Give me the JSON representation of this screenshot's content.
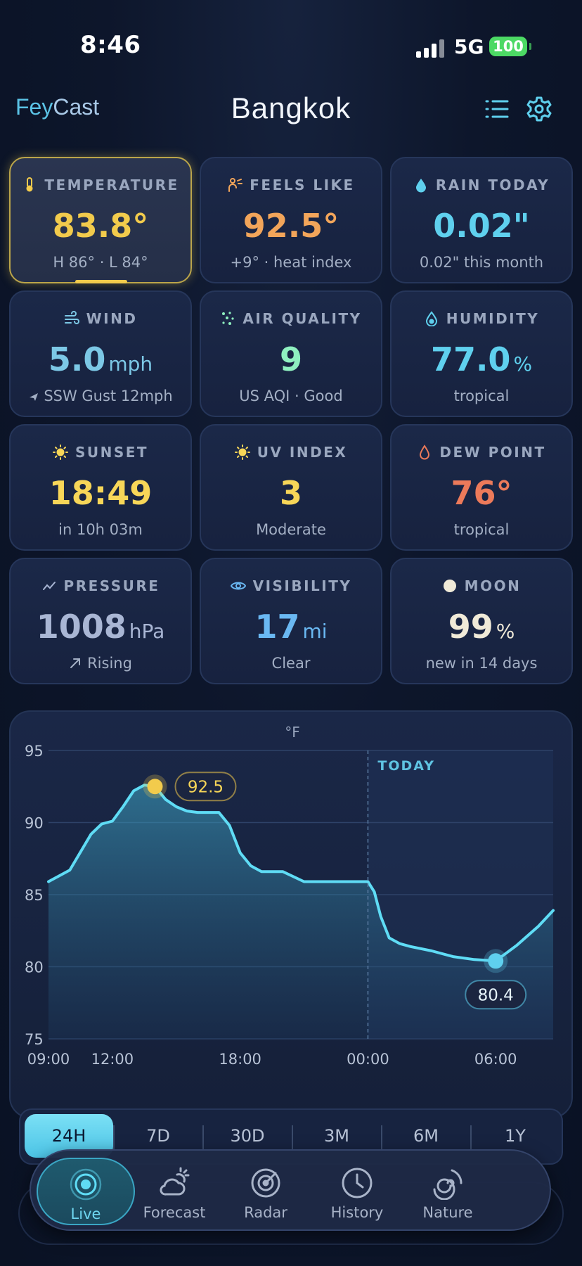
{
  "status_bar": {
    "time": "8:46",
    "network": "5G",
    "battery": "100"
  },
  "header": {
    "brand_part1": "Fey",
    "brand_part2": "Cast",
    "city": "Bangkok"
  },
  "tiles": [
    {
      "title": "TEMPERATURE",
      "value": "83.8°",
      "unit": "",
      "sub": "H 86° · L 84°",
      "icon": "thermometer-icon",
      "color": "#f2cb4c"
    },
    {
      "title": "FEELS LIKE",
      "value": "92.5°",
      "unit": "",
      "sub": "+9° · heat index",
      "icon": "person-icon",
      "color": "#f2a55a"
    },
    {
      "title": "RAIN TODAY",
      "value": "0.02\"",
      "unit": "",
      "sub": "0.02\" this month",
      "icon": "raindrop-icon",
      "color": "#5fd0ee"
    },
    {
      "title": "WIND",
      "value": "5.0",
      "unit": "mph",
      "sub": "SSW Gust 12mph",
      "icon": "wind-icon",
      "color": "#7cc8e6"
    },
    {
      "title": "AIR QUALITY",
      "value": "9",
      "unit": "",
      "sub": "US AQI · Good",
      "icon": "particles-icon",
      "color": "#8ff0c0"
    },
    {
      "title": "HUMIDITY",
      "value": "77.0",
      "unit": "%",
      "sub": "tropical",
      "icon": "humidity-drop-icon",
      "color": "#5fd0ee"
    },
    {
      "title": "SUNSET",
      "value": "18:49",
      "unit": "",
      "sub": "in 10h 03m",
      "icon": "sun-icon",
      "color": "#f7d658"
    },
    {
      "title": "UV INDEX",
      "value": "3",
      "unit": "",
      "sub": "Moderate",
      "icon": "sun-icon",
      "color": "#f7d658"
    },
    {
      "title": "DEW POINT",
      "value": "76°",
      "unit": "",
      "sub": "tropical",
      "icon": "drop-outline-icon",
      "color": "#ec7a5a"
    },
    {
      "title": "PRESSURE",
      "value": "1008",
      "unit": "hPa",
      "sub": "Rising",
      "icon": "gauge-icon",
      "color": "#a9b6d4"
    },
    {
      "title": "VISIBILITY",
      "value": "17",
      "unit": "mi",
      "sub": "Clear",
      "icon": "eye-icon",
      "color": "#6ab8f2"
    },
    {
      "title": "MOON",
      "value": "99",
      "unit": "%",
      "sub": "new in 14 days",
      "icon": "moon-icon",
      "color": "#f0ead8"
    }
  ],
  "chart_data": {
    "type": "area",
    "unit_label": "°F",
    "ylim": [
      75,
      95
    ],
    "y_ticks": [
      "95",
      "90",
      "85",
      "80",
      "75"
    ],
    "x_ticks": [
      "09:00",
      "12:00",
      "18:00",
      "00:00",
      "06:00"
    ],
    "x_tick_hours": [
      9,
      12,
      18,
      24,
      30
    ],
    "x_range_hours": [
      9,
      32.7
    ],
    "today_label": "TODAY",
    "today_hour": 24,
    "x": [
      9,
      10,
      11,
      11.5,
      12,
      12.5,
      13,
      13.5,
      14,
      14.5,
      15,
      15.5,
      16,
      17,
      17.5,
      18,
      18.5,
      19,
      19.5,
      20,
      21,
      21.5,
      22,
      23,
      24,
      24.3,
      24.6,
      25,
      25.5,
      26,
      27,
      28,
      29,
      30,
      31,
      32,
      32.7
    ],
    "y": [
      85.9,
      86.7,
      89.2,
      89.9,
      90.1,
      91.1,
      92.2,
      92.6,
      92.5,
      91.6,
      91.1,
      90.8,
      90.7,
      90.7,
      89.8,
      87.9,
      87.0,
      86.6,
      86.6,
      86.6,
      85.9,
      85.9,
      85.9,
      85.9,
      85.9,
      85.2,
      83.5,
      82.0,
      81.6,
      81.4,
      81.1,
      80.7,
      80.5,
      80.4,
      81.5,
      82.8,
      83.9
    ],
    "callouts": [
      {
        "label": "92.5",
        "x": 14,
        "y": 92.5,
        "color": "#f2cb4c"
      },
      {
        "label": "80.4",
        "x": 30,
        "y": 80.4,
        "color": "#5fd0ee"
      }
    ]
  },
  "range_options": [
    "24H",
    "7D",
    "30D",
    "3M",
    "6M",
    "1Y"
  ],
  "range_selected": "24H",
  "nav": [
    {
      "label": "Live",
      "icon": "live-target-icon",
      "selected": true
    },
    {
      "label": "Forecast",
      "icon": "cloud-sun-icon",
      "selected": false
    },
    {
      "label": "Radar",
      "icon": "radar-icon",
      "selected": false
    },
    {
      "label": "History",
      "icon": "clock-icon",
      "selected": false
    },
    {
      "label": "Nature",
      "icon": "spiral-icon",
      "selected": false
    }
  ]
}
